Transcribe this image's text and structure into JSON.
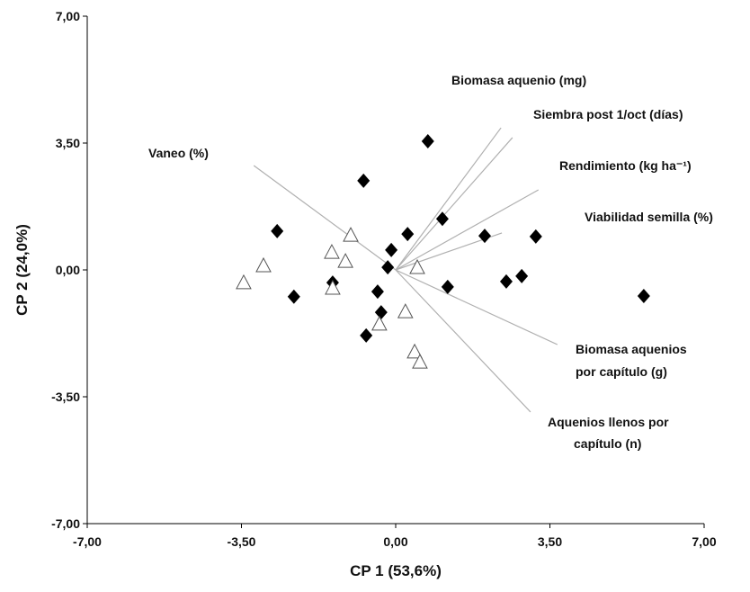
{
  "chart_data": {
    "type": "scatter",
    "xlabel": "CP 1 (53,6%)",
    "ylabel": "CP 2 (24,0%)",
    "xlim": [
      -7,
      7
    ],
    "ylim": [
      -7,
      7
    ],
    "xticks": [
      {
        "value": -7,
        "label": "-7,00"
      },
      {
        "value": -3.5,
        "label": "-3,50"
      },
      {
        "value": 0,
        "label": "0,00"
      },
      {
        "value": 3.5,
        "label": "3,50"
      },
      {
        "value": 7,
        "label": "7,00"
      }
    ],
    "yticks": [
      {
        "value": -7,
        "label": "-7,00"
      },
      {
        "value": -3.5,
        "label": "-3,50"
      },
      {
        "value": 0,
        "label": "0,00"
      },
      {
        "value": 3.5,
        "label": "3,50"
      },
      {
        "value": 7,
        "label": "7,00"
      }
    ],
    "series": [
      {
        "marker": "diamond",
        "color": "#000000",
        "x": [
          0.73,
          -0.73,
          -2.69,
          1.06,
          0.27,
          -0.1,
          2.02,
          3.18,
          -0.18,
          -1.43,
          -2.31,
          -0.41,
          1.18,
          2.51,
          2.86,
          5.63,
          -0.33,
          -0.67
        ],
        "values": [
          3.55,
          2.46,
          1.07,
          1.41,
          0.99,
          0.55,
          0.94,
          0.92,
          0.07,
          -0.35,
          -0.74,
          -0.6,
          -0.47,
          -0.32,
          -0.17,
          -0.72,
          -1.17,
          -1.81
        ]
      },
      {
        "marker": "triangle",
        "color": "#ffffff",
        "x": [
          -3.45,
          -3.0,
          -1.02,
          -1.45,
          -1.14,
          -1.43,
          0.49,
          0.22,
          -0.37,
          0.43,
          0.55
        ],
        "values": [
          -0.37,
          0.1,
          0.94,
          0.47,
          0.22,
          -0.52,
          0.05,
          -1.17,
          -1.51,
          -2.28,
          -2.56
        ]
      }
    ],
    "vectors": [
      {
        "label": [
          "Vaneo (%)"
        ],
        "x": -3.22,
        "y": 2.88
      },
      {
        "label": [
          "Biomasa aquenio (mg)"
        ],
        "x": 2.39,
        "y": 3.92
      },
      {
        "label": [
          "Siembra post 1/oct (días)"
        ],
        "x": 2.65,
        "y": 3.65
      },
      {
        "label": [
          "Rendimiento (kg ha⁻¹)"
        ],
        "x": 3.24,
        "y": 2.21
      },
      {
        "label": [
          "Viabilidad semilla (%)"
        ],
        "x": 2.41,
        "y": 1.02
      },
      {
        "label": [
          "Biomasa aquenios",
          "por capítulo (g)"
        ],
        "x": 3.67,
        "y": -2.06
      },
      {
        "label": [
          "Aquenios llenos por",
          "capítulo (n)"
        ],
        "x": 3.06,
        "y": -3.92
      }
    ],
    "vector_color": "#b0b0b0"
  }
}
